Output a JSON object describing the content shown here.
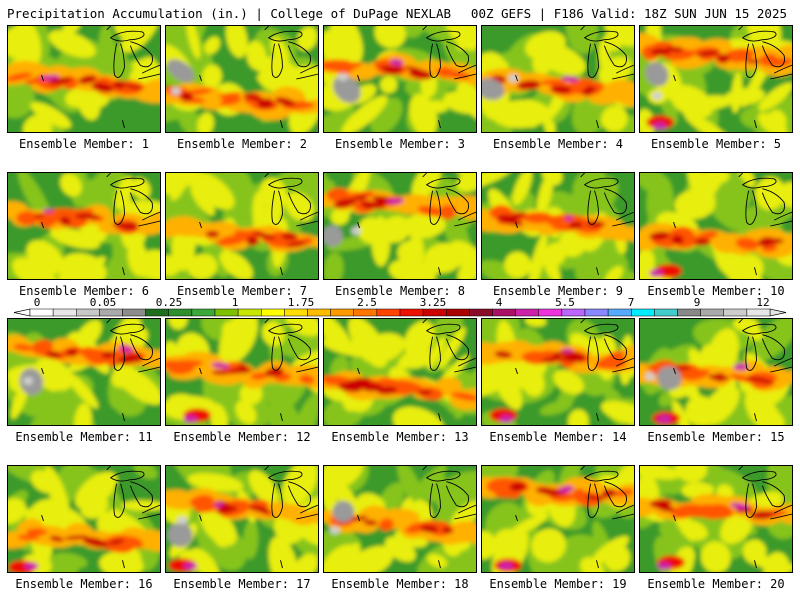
{
  "header": {
    "left": "Precipitation Accumulation (in.) | College of DuPage NEXLAB",
    "right": "00Z GEFS | F186 Valid: 18Z SUN JUN 15 2025"
  },
  "members": [
    {
      "label": "Ensemble Member: 1"
    },
    {
      "label": "Ensemble Member: 2"
    },
    {
      "label": "Ensemble Member: 3"
    },
    {
      "label": "Ensemble Member: 4"
    },
    {
      "label": "Ensemble Member: 5"
    },
    {
      "label": "Ensemble Member: 6"
    },
    {
      "label": "Ensemble Member: 7"
    },
    {
      "label": "Ensemble Member: 8"
    },
    {
      "label": "Ensemble Member: 9"
    },
    {
      "label": "Ensemble Member: 10"
    },
    {
      "label": "Ensemble Member: 11"
    },
    {
      "label": "Ensemble Member: 12"
    },
    {
      "label": "Ensemble Member: 13"
    },
    {
      "label": "Ensemble Member: 14"
    },
    {
      "label": "Ensemble Member: 15"
    },
    {
      "label": "Ensemble Member: 16"
    },
    {
      "label": "Ensemble Member: 17"
    },
    {
      "label": "Ensemble Member: 18"
    },
    {
      "label": "Ensemble Member: 19"
    },
    {
      "label": "Ensemble Member: 20"
    }
  ],
  "colorbar": {
    "tick_labels": [
      "0",
      "0.05",
      "0.25",
      "1",
      "1.75",
      "2.5",
      "3.25",
      "4",
      "5.5",
      "7",
      "9",
      "12"
    ],
    "colors": [
      "#ffffff",
      "#e6e6e6",
      "#c8c8c8",
      "#aaaaaa",
      "#8c8c8c",
      "#1e6e1e",
      "#2f8f2f",
      "#3ca83c",
      "#7cc000",
      "#c8e600",
      "#ffff00",
      "#ffdd00",
      "#ffbb00",
      "#ff9900",
      "#ff7700",
      "#ff4400",
      "#ee1100",
      "#cc0000",
      "#aa0000",
      "#8a0a2a",
      "#aa1166",
      "#cc22aa",
      "#ee33dd",
      "#bb66ff",
      "#8888ff",
      "#55aaff",
      "#00eeff",
      "#44cccc",
      "#888888",
      "#aaaaaa",
      "#cccccc",
      "#e6e6e6"
    ]
  }
}
